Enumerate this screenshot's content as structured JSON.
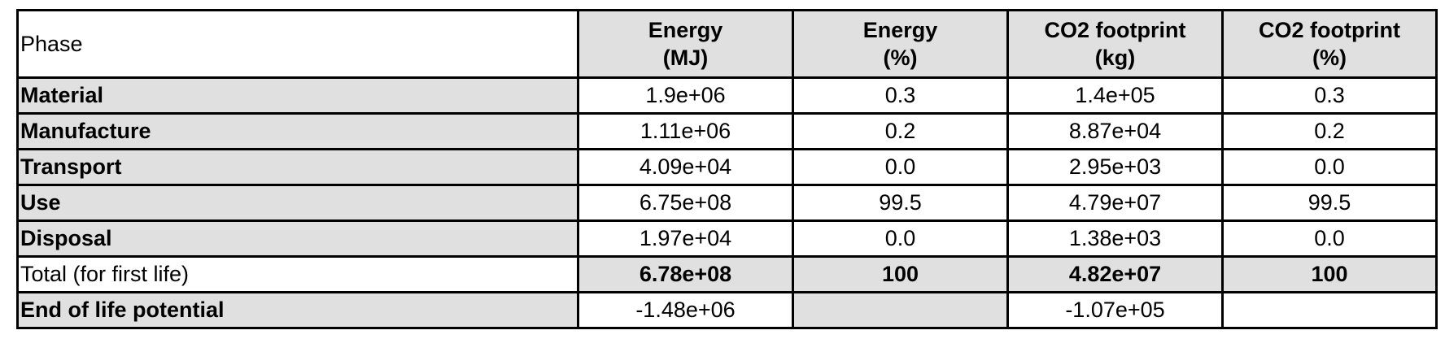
{
  "table": {
    "header": {
      "phase": "Phase",
      "columns": [
        {
          "line1": "Energy",
          "line2": "(MJ)"
        },
        {
          "line1": "Energy",
          "line2": "(%)"
        },
        {
          "line1": "CO2 footprint",
          "line2": "(kg)"
        },
        {
          "line1": "CO2 footprint",
          "line2": "(%)"
        }
      ]
    },
    "rows": [
      {
        "phase": "Material",
        "energy_mj": "1.9e+06",
        "energy_pct": "0.3",
        "co2_kg": "1.4e+05",
        "co2_pct": "0.3"
      },
      {
        "phase": "Manufacture",
        "energy_mj": "1.11e+06",
        "energy_pct": "0.2",
        "co2_kg": "8.87e+04",
        "co2_pct": "0.2"
      },
      {
        "phase": "Transport",
        "energy_mj": "4.09e+04",
        "energy_pct": "0.0",
        "co2_kg": "2.95e+03",
        "co2_pct": "0.0"
      },
      {
        "phase": "Use",
        "energy_mj": "6.75e+08",
        "energy_pct": "99.5",
        "co2_kg": "4.79e+07",
        "co2_pct": "99.5"
      },
      {
        "phase": "Disposal",
        "energy_mj": "1.97e+04",
        "energy_pct": "0.0",
        "co2_kg": "1.38e+03",
        "co2_pct": "0.0"
      }
    ],
    "total": {
      "phase": "Total (for first life)",
      "energy_mj": "6.78e+08",
      "energy_pct": "100",
      "co2_kg": "4.82e+07",
      "co2_pct": "100"
    },
    "end_of_life": {
      "phase": "End of life potential",
      "energy_mj": "-1.48e+06",
      "co2_kg": "-1.07e+05"
    }
  }
}
